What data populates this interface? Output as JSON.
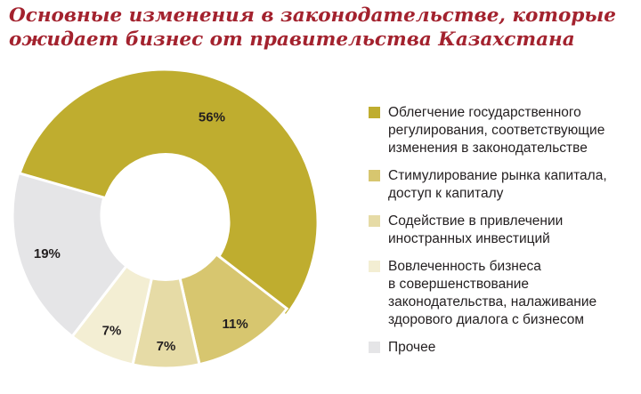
{
  "title": {
    "line1": "Основные изменения в законодательстве, которые",
    "line2": "ожидает бизнес от правительства Казахстана"
  },
  "chart_data": {
    "type": "pie",
    "variant": "donut",
    "title": "Основные изменения в законодательстве, которые ожидает бизнес от правительства Казахстана",
    "legend_position": "right",
    "series": [
      {
        "label_lines": [
          "Облегчение государственного",
          "регулирования, соответствующие",
          "изменения в законодательстве"
        ],
        "value": 56,
        "display": "56%",
        "color": "#bfad2f"
      },
      {
        "label_lines": [
          "Стимулирование рынка капитала,",
          "доступ к капиталу"
        ],
        "value": 11,
        "display": "11%",
        "color": "#d7c66f"
      },
      {
        "label_lines": [
          "Содействие в привлечении",
          "иностранных инвестиций"
        ],
        "value": 7,
        "display": "7%",
        "color": "#e6dba6"
      },
      {
        "label_lines": [
          "Вовлеченность бизнеса",
          "в совершенствование",
          "законодательства, налаживание",
          "здорового диалога с бизнесом"
        ],
        "value": 7,
        "display": "7%",
        "color": "#f3eed3"
      },
      {
        "label_lines": [
          "Прочее"
        ],
        "value": 19,
        "display": "19%",
        "color": "#e5e5e7"
      }
    ]
  }
}
